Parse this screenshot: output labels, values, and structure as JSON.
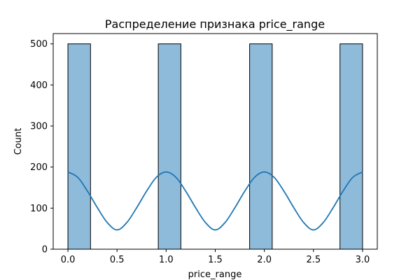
{
  "chart_data": {
    "type": "bar",
    "title": "Распределение признака price_range",
    "xlabel": "price_range",
    "ylabel": "Count",
    "xlim": [
      -0.15,
      3.15
    ],
    "ylim": [
      0,
      525
    ],
    "x_ticks": [
      0.0,
      0.5,
      1.0,
      1.5,
      2.0,
      2.5,
      3.0
    ],
    "x_tick_labels": [
      "0.0",
      "0.5",
      "1.0",
      "1.5",
      "2.0",
      "2.5",
      "3.0"
    ],
    "y_ticks": [
      0,
      100,
      200,
      300,
      400,
      500
    ],
    "y_tick_labels": [
      "0",
      "100",
      "200",
      "300",
      "400",
      "500"
    ],
    "bins": [
      {
        "x0": 0.0,
        "x1": 0.23,
        "count": 500
      },
      {
        "x0": 0.92,
        "x1": 1.15,
        "count": 500
      },
      {
        "x0": 1.85,
        "x1": 2.08,
        "count": 500
      },
      {
        "x0": 2.77,
        "x1": 3.0,
        "count": 500
      }
    ],
    "kde": {
      "x": [
        0.0,
        0.1,
        0.2,
        0.3,
        0.4,
        0.5,
        0.6,
        0.7,
        0.8,
        0.9,
        1.0,
        1.1,
        1.2,
        1.3,
        1.4,
        1.5,
        1.6,
        1.7,
        1.8,
        1.9,
        2.0,
        2.1,
        2.2,
        2.3,
        2.4,
        2.5,
        2.6,
        2.7,
        2.8,
        2.9,
        3.0
      ],
      "y": [
        188,
        175,
        141,
        101,
        65,
        47,
        65,
        101,
        141,
        175,
        188,
        175,
        141,
        101,
        65,
        47,
        65,
        101,
        141,
        175,
        188,
        175,
        141,
        101,
        65,
        47,
        65,
        101,
        141,
        175,
        188
      ]
    },
    "grid": false,
    "colors": {
      "bar_fill": "#8fbbdb",
      "bar_edge": "#000000",
      "kde_line": "#1f77b4"
    }
  }
}
